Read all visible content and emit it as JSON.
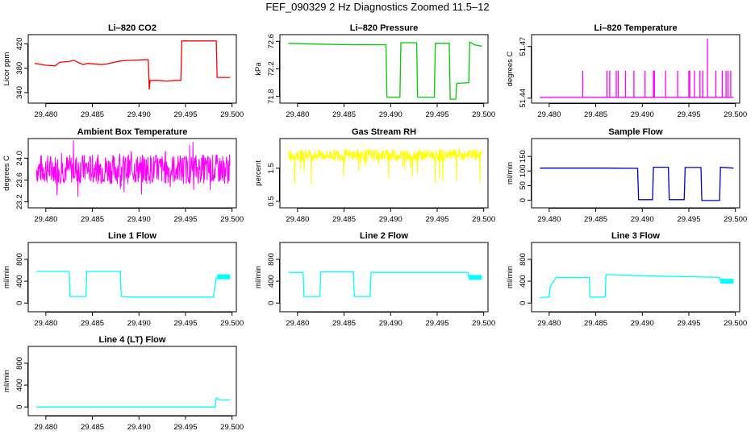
{
  "title": "FEF_090329  2 Hz Diagnostics Zoomed 11.5–12",
  "chart_data": [
    {
      "type": "line",
      "title": "Li–820 CO2",
      "ylabel": "Licor ppm",
      "color": "#ff0000",
      "xlim": [
        29.4788,
        29.5002
      ],
      "ylim": [
        328,
        430
      ],
      "xticks": [
        "29.480",
        "29.485",
        "29.490",
        "29.495",
        "29.500"
      ],
      "yticks": [
        "340",
        "380",
        "420"
      ],
      "series": [
        {
          "x": [
            29.4788,
            29.48,
            29.481,
            29.4815,
            29.4825,
            29.483,
            29.484,
            29.4845,
            29.486,
            29.4865,
            29.488,
            29.489,
            29.4905,
            29.491,
            29.4911,
            29.4912,
            29.492,
            29.493,
            29.494,
            29.4945,
            29.4946,
            29.495,
            29.496,
            29.497,
            29.4983,
            29.4984,
            29.499,
            29.4998
          ],
          "y": [
            388,
            385,
            384,
            390,
            391,
            393,
            386,
            388,
            386,
            387,
            392,
            393,
            394,
            394,
            345,
            360,
            360,
            359,
            360,
            360,
            425,
            425,
            425,
            425,
            425,
            365,
            365,
            365
          ]
        }
      ]
    },
    {
      "type": "line",
      "title": "Li–820 Pressure",
      "ylabel": "kPa",
      "color": "#00cc00",
      "xlim": [
        29.4788,
        29.5002
      ],
      "ylim": [
        71.75,
        72.65
      ],
      "xticks": [
        "29.480",
        "29.485",
        "29.490",
        "29.495",
        "29.500"
      ],
      "yticks": [
        "71.8",
        "72.2",
        "72.6"
      ],
      "series": [
        {
          "x": [
            29.479,
            29.482,
            29.486,
            29.489,
            29.4895,
            29.4896,
            29.491,
            29.4911,
            29.4928,
            29.4929,
            29.4947,
            29.4948,
            29.4963,
            29.4964,
            29.497,
            29.4971,
            29.4984,
            29.4985,
            29.499,
            29.4998
          ],
          "y": [
            72.57,
            72.56,
            72.55,
            72.55,
            72.55,
            71.79,
            71.79,
            72.58,
            72.58,
            71.79,
            71.79,
            72.57,
            72.57,
            71.76,
            71.76,
            71.99,
            72.0,
            72.59,
            72.55,
            72.53
          ]
        }
      ]
    },
    {
      "type": "line",
      "title": "Li–820 Temperature",
      "ylabel": "degrees C",
      "color": "#ff00ff",
      "xlim": [
        29.4788,
        29.5002
      ],
      "ylim": [
        51.439,
        51.475
      ],
      "xticks": [
        "29.480",
        "29.485",
        "29.490",
        "29.495",
        "29.500"
      ],
      "yticks": [
        "51.44",
        "51.47"
      ],
      "series": [
        {
          "x": [
            29.479,
            29.48,
            29.4836,
            29.4862,
            29.4865,
            29.4872,
            29.4874,
            29.4882,
            29.4891,
            29.4903,
            29.4912,
            29.4925,
            29.4938,
            29.495,
            29.4956,
            29.4962,
            29.497,
            29.4975,
            29.498,
            29.4986,
            29.4992,
            29.4998
          ],
          "y": [
            51.4405,
            51.4405,
            51.4405,
            51.4405,
            51.4405,
            51.4405,
            51.4405,
            51.4405,
            51.4405,
            51.4405,
            51.4405,
            51.4405,
            51.4405,
            51.4405,
            51.4405,
            51.4405,
            51.4745,
            51.4405,
            51.4405,
            51.4405,
            51.4405,
            51.4405
          ]
        }
      ]
    },
    {
      "type": "line",
      "title": "Ambient Box Temperature",
      "ylabel": "degrees C",
      "color": "#ff00ff",
      "xlim": [
        29.4788,
        29.5002
      ],
      "ylim": [
        23.15,
        24.3
      ],
      "xticks": [
        "29.480",
        "29.485",
        "29.490",
        "29.495",
        "29.500"
      ],
      "yticks": [
        "23.2",
        "23.6",
        "24.0"
      ],
      "series": [
        {
          "x": [
            29.479,
            29.4998
          ],
          "y": [
            23.8,
            23.8
          ]
        }
      ]
    },
    {
      "type": "line",
      "title": "Gas Stream RH",
      "ylabel": "percent",
      "color": "#ffff00",
      "xlim": [
        29.4788,
        29.5002
      ],
      "ylim": [
        0.4,
        2.3
      ],
      "xticks": [
        "29.480",
        "29.485",
        "29.490",
        "29.495",
        "29.500"
      ],
      "yticks": [
        "0.5",
        "1.5"
      ],
      "series": [
        {
          "x": [
            29.479,
            29.4998
          ],
          "y": [
            1.9,
            1.9
          ]
        }
      ]
    },
    {
      "type": "line",
      "title": "Sample Flow",
      "ylabel": "ml/min",
      "color": "#0000cc",
      "xlim": [
        29.4788,
        29.5002
      ],
      "ylim": [
        -15,
        200
      ],
      "xticks": [
        "29.480",
        "29.485",
        "29.490",
        "29.495",
        "29.500"
      ],
      "yticks": [
        "0",
        "50",
        "100",
        "150"
      ],
      "series": [
        {
          "x": [
            29.479,
            29.486,
            29.4895,
            29.4896,
            29.4911,
            29.4912,
            29.4928,
            29.4929,
            29.4945,
            29.4946,
            29.4963,
            29.4964,
            29.498,
            29.4983,
            29.4984,
            29.4998
          ],
          "y": [
            110,
            110,
            109,
            2,
            2,
            113,
            113,
            2,
            2,
            112,
            112,
            -1,
            -1,
            0,
            113,
            110
          ]
        }
      ]
    },
    {
      "type": "line",
      "title": "Line 1 Flow",
      "ylabel": "ml/min",
      "color": "#00ffff",
      "xlim": [
        29.4788,
        29.5002
      ],
      "ylim": [
        -100,
        1050
      ],
      "xticks": [
        "29.480",
        "29.485",
        "29.490",
        "29.495",
        "29.500"
      ],
      "yticks": [
        "0",
        "400",
        "800"
      ],
      "series": [
        {
          "x": [
            29.479,
            29.4825,
            29.4826,
            29.4843,
            29.4844,
            29.488,
            29.4881,
            29.4895,
            29.498,
            29.4983,
            29.4998
          ],
          "y": [
            580,
            580,
            120,
            120,
            580,
            580,
            120,
            110,
            110,
            460,
            480
          ]
        }
      ]
    },
    {
      "type": "line",
      "title": "Line 2 Flow",
      "ylabel": "ml/min",
      "color": "#00ffff",
      "xlim": [
        29.4788,
        29.5002
      ],
      "ylim": [
        -100,
        1050
      ],
      "xticks": [
        "29.480",
        "29.485",
        "29.490",
        "29.495",
        "29.500"
      ],
      "yticks": [
        "0",
        "400",
        "800"
      ],
      "series": [
        {
          "x": [
            29.479,
            29.4806,
            29.4807,
            29.4824,
            29.4825,
            29.486,
            29.4861,
            29.4878,
            29.4879,
            29.4983,
            29.4984,
            29.4998
          ],
          "y": [
            560,
            560,
            120,
            120,
            570,
            570,
            120,
            120,
            560,
            560,
            470,
            470
          ]
        }
      ]
    },
    {
      "type": "line",
      "title": "Line 3 Flow",
      "ylabel": "ml/min",
      "color": "#00ffff",
      "xlim": [
        29.4788,
        29.5002
      ],
      "ylim": [
        -100,
        1050
      ],
      "xticks": [
        "29.480",
        "29.485",
        "29.490",
        "29.495",
        "29.500"
      ],
      "yticks": [
        "0",
        "400",
        "800"
      ],
      "series": [
        {
          "x": [
            29.479,
            29.48,
            29.4801,
            29.4808,
            29.4809,
            29.4843,
            29.4844,
            29.486,
            29.4861,
            29.49,
            29.4983,
            29.4984,
            29.4998
          ],
          "y": [
            100,
            110,
            300,
            480,
            470,
            470,
            110,
            110,
            520,
            500,
            470,
            400,
            400
          ]
        }
      ]
    },
    {
      "type": "line",
      "title": "Line 4 (LT) Flow",
      "ylabel": "ml/min",
      "color": "#00ffff",
      "xlim": [
        29.4788,
        29.5002
      ],
      "ylim": [
        -100,
        1050
      ],
      "xticks": [
        "29.480",
        "29.485",
        "29.490",
        "29.495",
        "29.500"
      ],
      "yticks": [
        "0",
        "400",
        "800"
      ],
      "series": [
        {
          "x": [
            29.479,
            29.4982,
            29.4983,
            29.4986,
            29.4998
          ],
          "y": [
            0,
            0,
            170,
            130,
            130
          ]
        }
      ]
    }
  ]
}
